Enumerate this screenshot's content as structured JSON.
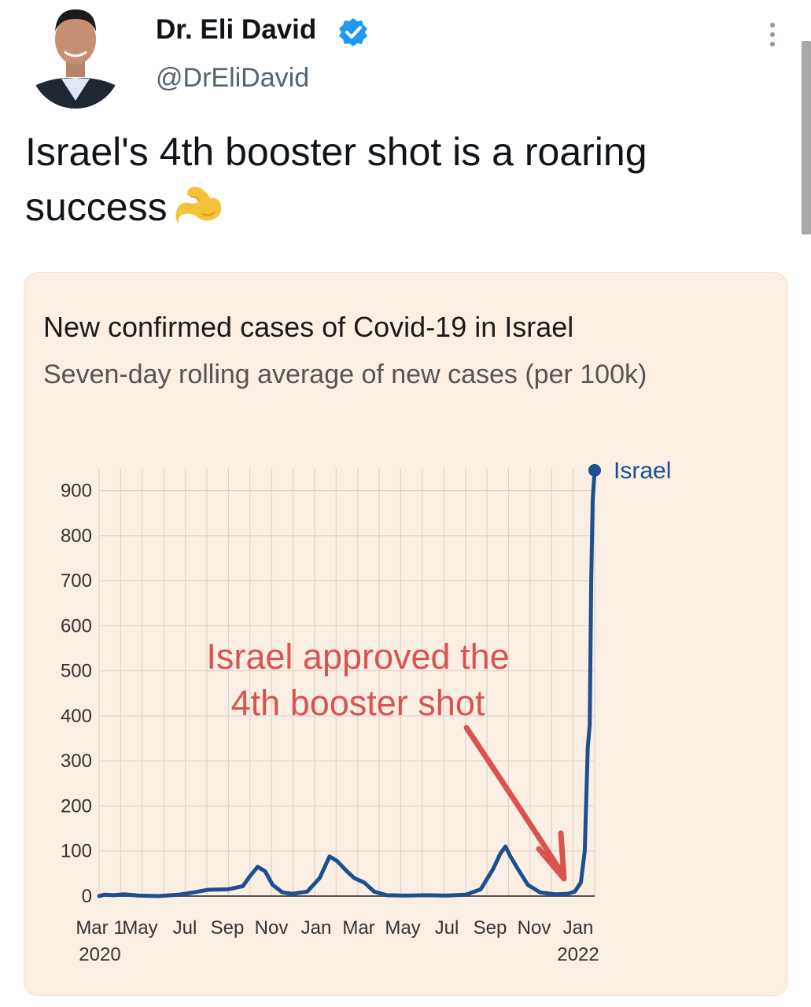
{
  "tweet": {
    "author_name": "Dr. Eli David",
    "author_handle": "@DrEliDavid",
    "text": "Israel's 4th booster shot is a roaring success",
    "emoji_icon": "flexed-biceps-icon"
  },
  "chart": {
    "title": "New confirmed cases of Covid-19 in Israel",
    "subtitle": "Seven-day rolling average of new cases (per 100k)",
    "annotation_line1": "Israel approved the",
    "annotation_line2": "4th booster shot",
    "annotation_color": "#d9534f",
    "line_color": "#1d4f91"
  },
  "chart_data": {
    "type": "line",
    "ylim": [
      0,
      950
    ],
    "yticks": [
      0,
      100,
      200,
      300,
      400,
      500,
      600,
      700,
      800,
      900
    ],
    "xtick_labels": [
      {
        "label": "Mar 1",
        "sub": "2020"
      },
      {
        "label": "May",
        "sub": ""
      },
      {
        "label": "Jul",
        "sub": ""
      },
      {
        "label": "Sep",
        "sub": ""
      },
      {
        "label": "Nov",
        "sub": ""
      },
      {
        "label": "Jan",
        "sub": ""
      },
      {
        "label": "Mar",
        "sub": ""
      },
      {
        "label": "May",
        "sub": ""
      },
      {
        "label": "Jul",
        "sub": ""
      },
      {
        "label": "Sep",
        "sub": ""
      },
      {
        "label": "Nov",
        "sub": ""
      },
      {
        "label": "Jan",
        "sub": "2022"
      }
    ],
    "grid": true,
    "legend_position": "top-right",
    "series": [
      {
        "name": "Israel",
        "points": [
          [
            0,
            0
          ],
          [
            0.1,
            3
          ],
          [
            0.3,
            2
          ],
          [
            0.5,
            4
          ],
          [
            0.8,
            1
          ],
          [
            1.2,
            0
          ],
          [
            1.6,
            3
          ],
          [
            1.9,
            8
          ],
          [
            2.2,
            14
          ],
          [
            2.6,
            15
          ],
          [
            2.9,
            22
          ],
          [
            3.05,
            45
          ],
          [
            3.2,
            65
          ],
          [
            3.35,
            55
          ],
          [
            3.5,
            25
          ],
          [
            3.7,
            8
          ],
          [
            3.9,
            5
          ],
          [
            4.2,
            10
          ],
          [
            4.45,
            40
          ],
          [
            4.65,
            88
          ],
          [
            4.8,
            78
          ],
          [
            5.0,
            55
          ],
          [
            5.15,
            40
          ],
          [
            5.35,
            30
          ],
          [
            5.55,
            10
          ],
          [
            5.8,
            2
          ],
          [
            6.2,
            1
          ],
          [
            6.6,
            2
          ],
          [
            7.0,
            1
          ],
          [
            7.4,
            3
          ],
          [
            7.7,
            15
          ],
          [
            7.95,
            60
          ],
          [
            8.1,
            95
          ],
          [
            8.2,
            110
          ],
          [
            8.3,
            88
          ],
          [
            8.45,
            60
          ],
          [
            8.65,
            25
          ],
          [
            8.9,
            8
          ],
          [
            9.2,
            4
          ],
          [
            9.45,
            5
          ],
          [
            9.6,
            10
          ],
          [
            9.72,
            30
          ],
          [
            9.8,
            100
          ],
          [
            9.86,
            330
          ],
          [
            9.9,
            380
          ],
          [
            9.93,
            700
          ],
          [
            9.96,
            880
          ],
          [
            10.0,
            945
          ]
        ]
      }
    ]
  }
}
